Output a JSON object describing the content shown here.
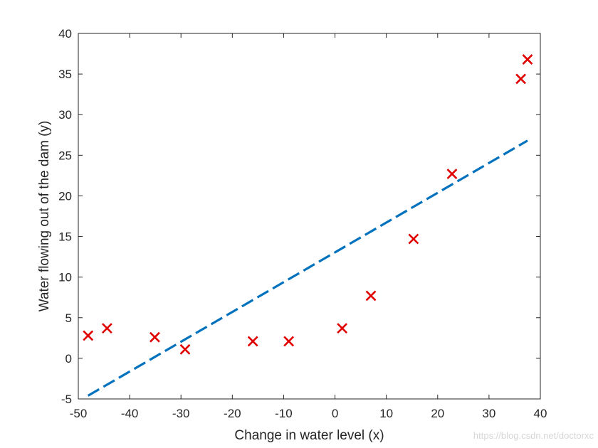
{
  "chart_data": {
    "type": "scatter",
    "title": "",
    "xlabel": "Change in water level (x)",
    "ylabel": "Water flowing out of the dam (y)",
    "xlim": [
      -50,
      40
    ],
    "ylim": [
      -5,
      40
    ],
    "x_ticks": [
      -50,
      -40,
      -30,
      -20,
      -10,
      0,
      10,
      20,
      30,
      40
    ],
    "y_ticks": [
      -5,
      0,
      5,
      10,
      15,
      20,
      25,
      30,
      35,
      40
    ],
    "grid": false,
    "series": [
      {
        "kind": "scatter",
        "marker": "x",
        "color": "#e00000",
        "points": [
          {
            "x": -48.1,
            "y": 2.8
          },
          {
            "x": -44.4,
            "y": 3.7
          },
          {
            "x": -35.1,
            "y": 2.6
          },
          {
            "x": -29.2,
            "y": 1.1
          },
          {
            "x": -16.0,
            "y": 2.1
          },
          {
            "x": -9.0,
            "y": 2.1
          },
          {
            "x": 1.4,
            "y": 3.7
          },
          {
            "x": 7.0,
            "y": 7.7
          },
          {
            "x": 15.3,
            "y": 14.7
          },
          {
            "x": 22.8,
            "y": 22.7
          },
          {
            "x": 36.2,
            "y": 34.4
          },
          {
            "x": 37.5,
            "y": 36.8
          }
        ]
      },
      {
        "kind": "line",
        "style": "dashed",
        "color": "#0072bd",
        "points": [
          {
            "x": -48.1,
            "y": -4.6
          },
          {
            "x": 37.5,
            "y": 26.8
          }
        ]
      }
    ],
    "watermark": "https://blog.csdn.net/doctorxc"
  }
}
